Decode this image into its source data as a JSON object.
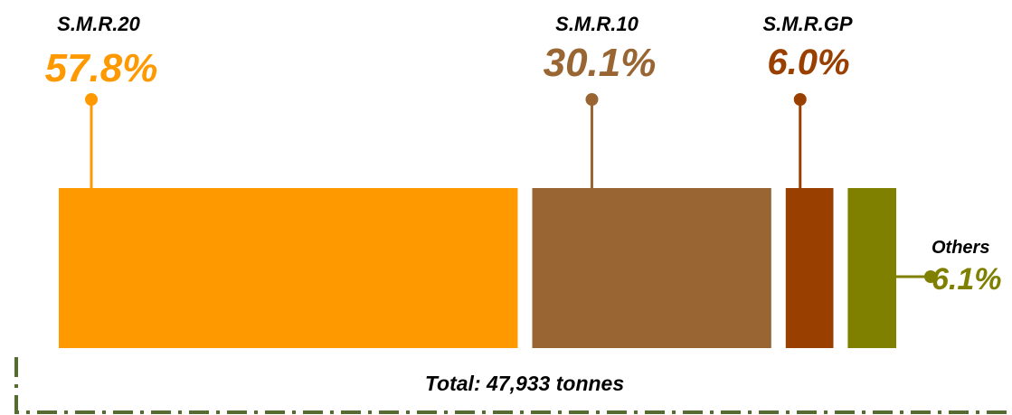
{
  "chart_data": {
    "type": "bar",
    "orientation": "horizontal-stacked-proportional",
    "categories": [
      "S.M.R.20",
      "S.M.R.10",
      "S.M.R.GP",
      "Others"
    ],
    "values": [
      57.8,
      30.1,
      6.0,
      6.1
    ],
    "value_labels": [
      "57.8%",
      "30.1%",
      "6.0%",
      "6.1%"
    ],
    "colors": [
      "#FF9900",
      "#996633",
      "#993F00",
      "#808000"
    ],
    "total_label": "Total: 47,933 tonnes",
    "frame_color": "#556B2F"
  }
}
